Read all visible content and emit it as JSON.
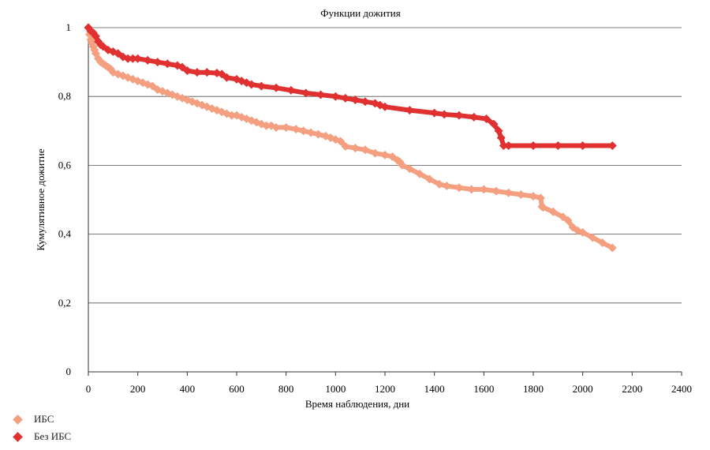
{
  "chart_data": {
    "type": "line",
    "title": "Функции дожития",
    "xlabel": "Время наблюдения, дни",
    "ylabel": "Кумулятивное дожитие",
    "xlim": [
      0,
      2400
    ],
    "ylim": [
      0,
      1
    ],
    "x_ticks": [
      "0",
      "200",
      "400",
      "600",
      "800",
      "1000",
      "1200",
      "1400",
      "1600",
      "1800",
      "2000",
      "2200",
      "2400"
    ],
    "y_ticks": [
      "0",
      "0,2",
      "0,4",
      "0,6",
      "0,8",
      "1"
    ],
    "grid": "horizontal",
    "legend_position": "bottom-left",
    "series": [
      {
        "name": "ИБС",
        "color": "#f4a080",
        "x": [
          0,
          5,
          10,
          15,
          20,
          25,
          30,
          40,
          50,
          60,
          70,
          80,
          90,
          100,
          120,
          140,
          160,
          180,
          200,
          220,
          240,
          260,
          280,
          300,
          320,
          340,
          360,
          380,
          400,
          420,
          440,
          460,
          480,
          500,
          520,
          540,
          560,
          580,
          600,
          620,
          640,
          660,
          680,
          700,
          720,
          740,
          760,
          800,
          840,
          870,
          900,
          930,
          960,
          980,
          1000,
          1020,
          1040,
          1080,
          1120,
          1160,
          1200,
          1230,
          1250,
          1260,
          1270,
          1300,
          1340,
          1380,
          1420,
          1450,
          1500,
          1550,
          1600,
          1650,
          1700,
          1750,
          1800,
          1830,
          1835,
          1840,
          1880,
          1920,
          1940,
          1960,
          1980,
          2000,
          2040,
          2080,
          2120
        ],
        "values": [
          1.0,
          0.98,
          0.965,
          0.955,
          0.945,
          0.935,
          0.925,
          0.91,
          0.9,
          0.895,
          0.89,
          0.885,
          0.88,
          0.87,
          0.865,
          0.86,
          0.855,
          0.85,
          0.845,
          0.84,
          0.835,
          0.83,
          0.82,
          0.815,
          0.81,
          0.805,
          0.8,
          0.795,
          0.79,
          0.785,
          0.78,
          0.775,
          0.77,
          0.765,
          0.76,
          0.755,
          0.75,
          0.745,
          0.745,
          0.74,
          0.735,
          0.73,
          0.725,
          0.72,
          0.715,
          0.715,
          0.71,
          0.71,
          0.705,
          0.7,
          0.695,
          0.69,
          0.685,
          0.68,
          0.675,
          0.67,
          0.655,
          0.65,
          0.645,
          0.635,
          0.63,
          0.625,
          0.615,
          0.61,
          0.6,
          0.59,
          0.575,
          0.56,
          0.545,
          0.54,
          0.535,
          0.53,
          0.53,
          0.525,
          0.52,
          0.515,
          0.51,
          0.505,
          0.48,
          0.478,
          0.465,
          0.45,
          0.44,
          0.42,
          0.41,
          0.405,
          0.39,
          0.375,
          0.36
        ]
      },
      {
        "name": "Без ИБС",
        "color": "#e03030",
        "x": [
          0,
          10,
          20,
          30,
          40,
          50,
          60,
          80,
          100,
          120,
          140,
          160,
          180,
          200,
          240,
          280,
          320,
          360,
          380,
          400,
          440,
          480,
          520,
          540,
          560,
          600,
          620,
          640,
          660,
          700,
          760,
          820,
          880,
          940,
          1000,
          1040,
          1080,
          1120,
          1160,
          1180,
          1200,
          1300,
          1400,
          1440,
          1500,
          1560,
          1610,
          1640,
          1660,
          1670,
          1680,
          1700,
          1800,
          1900,
          2000,
          2120
        ],
        "values": [
          1.0,
          0.99,
          0.985,
          0.975,
          0.96,
          0.95,
          0.945,
          0.935,
          0.93,
          0.925,
          0.915,
          0.91,
          0.91,
          0.91,
          0.905,
          0.9,
          0.895,
          0.89,
          0.885,
          0.875,
          0.87,
          0.87,
          0.868,
          0.865,
          0.855,
          0.85,
          0.845,
          0.84,
          0.835,
          0.83,
          0.825,
          0.818,
          0.81,
          0.805,
          0.8,
          0.795,
          0.79,
          0.785,
          0.78,
          0.775,
          0.77,
          0.76,
          0.752,
          0.748,
          0.745,
          0.74,
          0.735,
          0.72,
          0.7,
          0.68,
          0.657,
          0.657,
          0.657,
          0.657,
          0.657,
          0.657
        ]
      }
    ]
  }
}
